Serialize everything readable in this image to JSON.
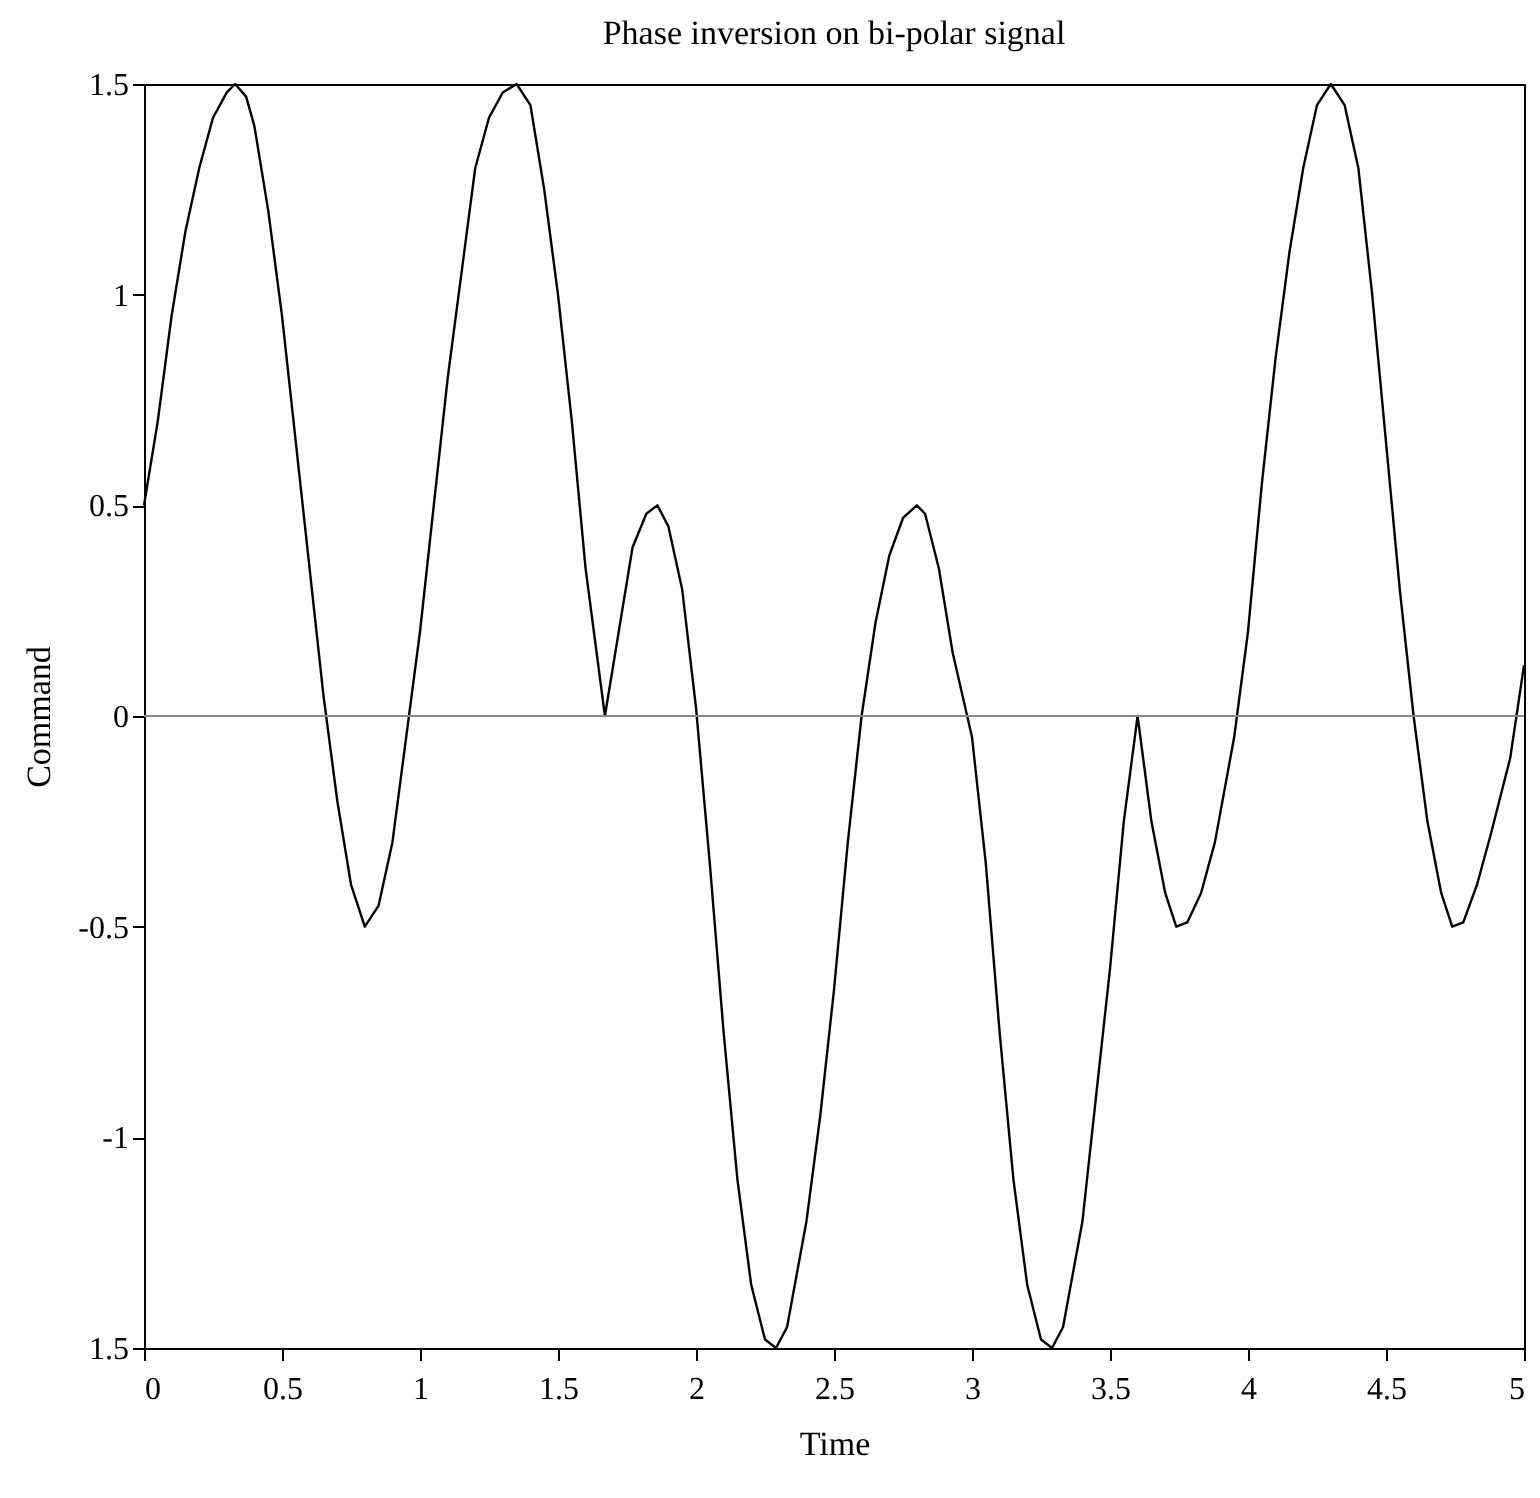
{
  "chart_data": {
    "type": "line",
    "title": "Phase inversion on bi-polar signal",
    "xlabel": "Time",
    "ylabel": "Command",
    "xlim": [
      0,
      5
    ],
    "xticks": [
      0,
      0.5,
      1,
      1.5,
      2,
      2.5,
      3,
      3.5,
      4,
      4.5,
      5
    ],
    "ylim": [
      -1.5,
      1.5
    ],
    "yticks": [
      {
        "value": -1.5,
        "label": "1.5"
      },
      -1,
      -0.5,
      0,
      0.5,
      1,
      1.5
    ],
    "grid": false,
    "ref_lines": [
      {
        "axis": "y",
        "value": 0,
        "color": "#888888"
      }
    ],
    "series": [
      {
        "color": "#000000",
        "x": [
          0,
          0.05,
          0.1,
          0.15,
          0.2,
          0.25,
          0.3,
          0.33,
          0.37,
          0.4,
          0.45,
          0.5,
          0.55,
          0.6,
          0.65,
          0.7,
          0.75,
          0.8,
          0.85,
          0.9,
          0.95,
          1.0,
          1.05,
          1.1,
          1.15,
          1.2,
          1.25,
          1.3,
          1.35,
          1.4,
          1.45,
          1.5,
          1.55,
          1.6,
          1.67,
          1.72,
          1.77,
          1.82,
          1.86,
          1.9,
          1.95,
          2.0,
          2.05,
          2.1,
          2.15,
          2.2,
          2.25,
          2.29,
          2.33,
          2.4,
          2.45,
          2.5,
          2.55,
          2.6,
          2.65,
          2.7,
          2.75,
          2.8,
          2.83,
          2.88,
          2.93,
          3.0,
          3.05,
          3.1,
          3.15,
          3.2,
          3.25,
          3.29,
          3.33,
          3.4,
          3.45,
          3.5,
          3.55,
          3.6,
          3.65,
          3.7,
          3.74,
          3.78,
          3.83,
          3.88,
          3.95,
          4.0,
          4.05,
          4.1,
          4.15,
          4.2,
          4.25,
          4.3,
          4.35,
          4.4,
          4.45,
          4.5,
          4.55,
          4.6,
          4.65,
          4.7,
          4.74,
          4.78,
          4.83,
          4.88,
          4.95,
          5.0
        ],
        "values": [
          0.5,
          0.7,
          0.95,
          1.15,
          1.3,
          1.42,
          1.48,
          1.5,
          1.47,
          1.4,
          1.2,
          0.95,
          0.65,
          0.35,
          0.05,
          -0.2,
          -0.4,
          -0.5,
          -0.45,
          -0.3,
          -0.05,
          0.2,
          0.5,
          0.8,
          1.05,
          1.3,
          1.42,
          1.48,
          1.5,
          1.45,
          1.25,
          1.0,
          0.7,
          0.35,
          0.0,
          0.2,
          0.4,
          0.48,
          0.5,
          0.45,
          0.3,
          0.02,
          -0.35,
          -0.75,
          -1.1,
          -1.35,
          -1.48,
          -1.5,
          -1.45,
          -1.2,
          -0.95,
          -0.65,
          -0.3,
          0.0,
          0.22,
          0.38,
          0.47,
          0.5,
          0.48,
          0.35,
          0.15,
          -0.05,
          -0.35,
          -0.75,
          -1.1,
          -1.35,
          -1.48,
          -1.5,
          -1.45,
          -1.2,
          -0.9,
          -0.6,
          -0.25,
          0.0,
          -0.25,
          -0.42,
          -0.5,
          -0.49,
          -0.42,
          -0.3,
          -0.05,
          0.2,
          0.55,
          0.85,
          1.1,
          1.3,
          1.45,
          1.5,
          1.45,
          1.3,
          1.0,
          0.65,
          0.3,
          0.0,
          -0.25,
          -0.42,
          -0.5,
          -0.49,
          -0.4,
          -0.28,
          -0.1,
          0.12
        ]
      }
    ]
  }
}
